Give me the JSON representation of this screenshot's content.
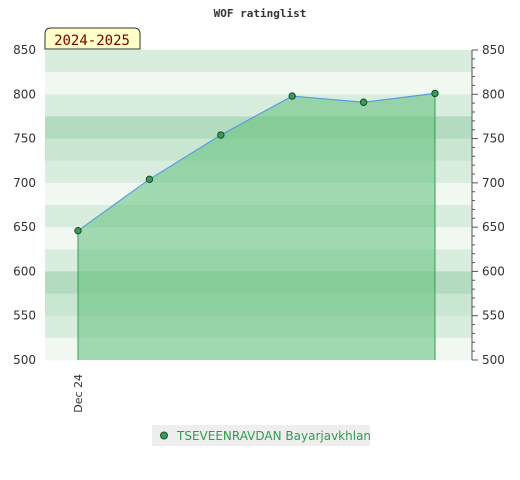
{
  "chart_data": {
    "type": "area",
    "title": "WOF ratinglist",
    "season_label": "2024-2025",
    "xlabel": "",
    "ylabel": "",
    "ylim": [
      500,
      850
    ],
    "yticks": [
      500,
      550,
      600,
      650,
      700,
      750,
      800,
      850
    ],
    "x_tick_labels": [
      "Dec 24"
    ],
    "series": [
      {
        "name": "TSEVEENRAVDAN Bayarjavkhlan",
        "values": [
          646,
          704,
          754,
          798,
          791,
          801
        ]
      }
    ],
    "legend_position": "bottom-center",
    "grid": true,
    "colors": {
      "fill": "#5fbf7a",
      "line": "#5a9be0",
      "marker": "#3a9a5a",
      "legend_text": "#2e9e4e",
      "season_bg": "#ffffc8"
    }
  }
}
